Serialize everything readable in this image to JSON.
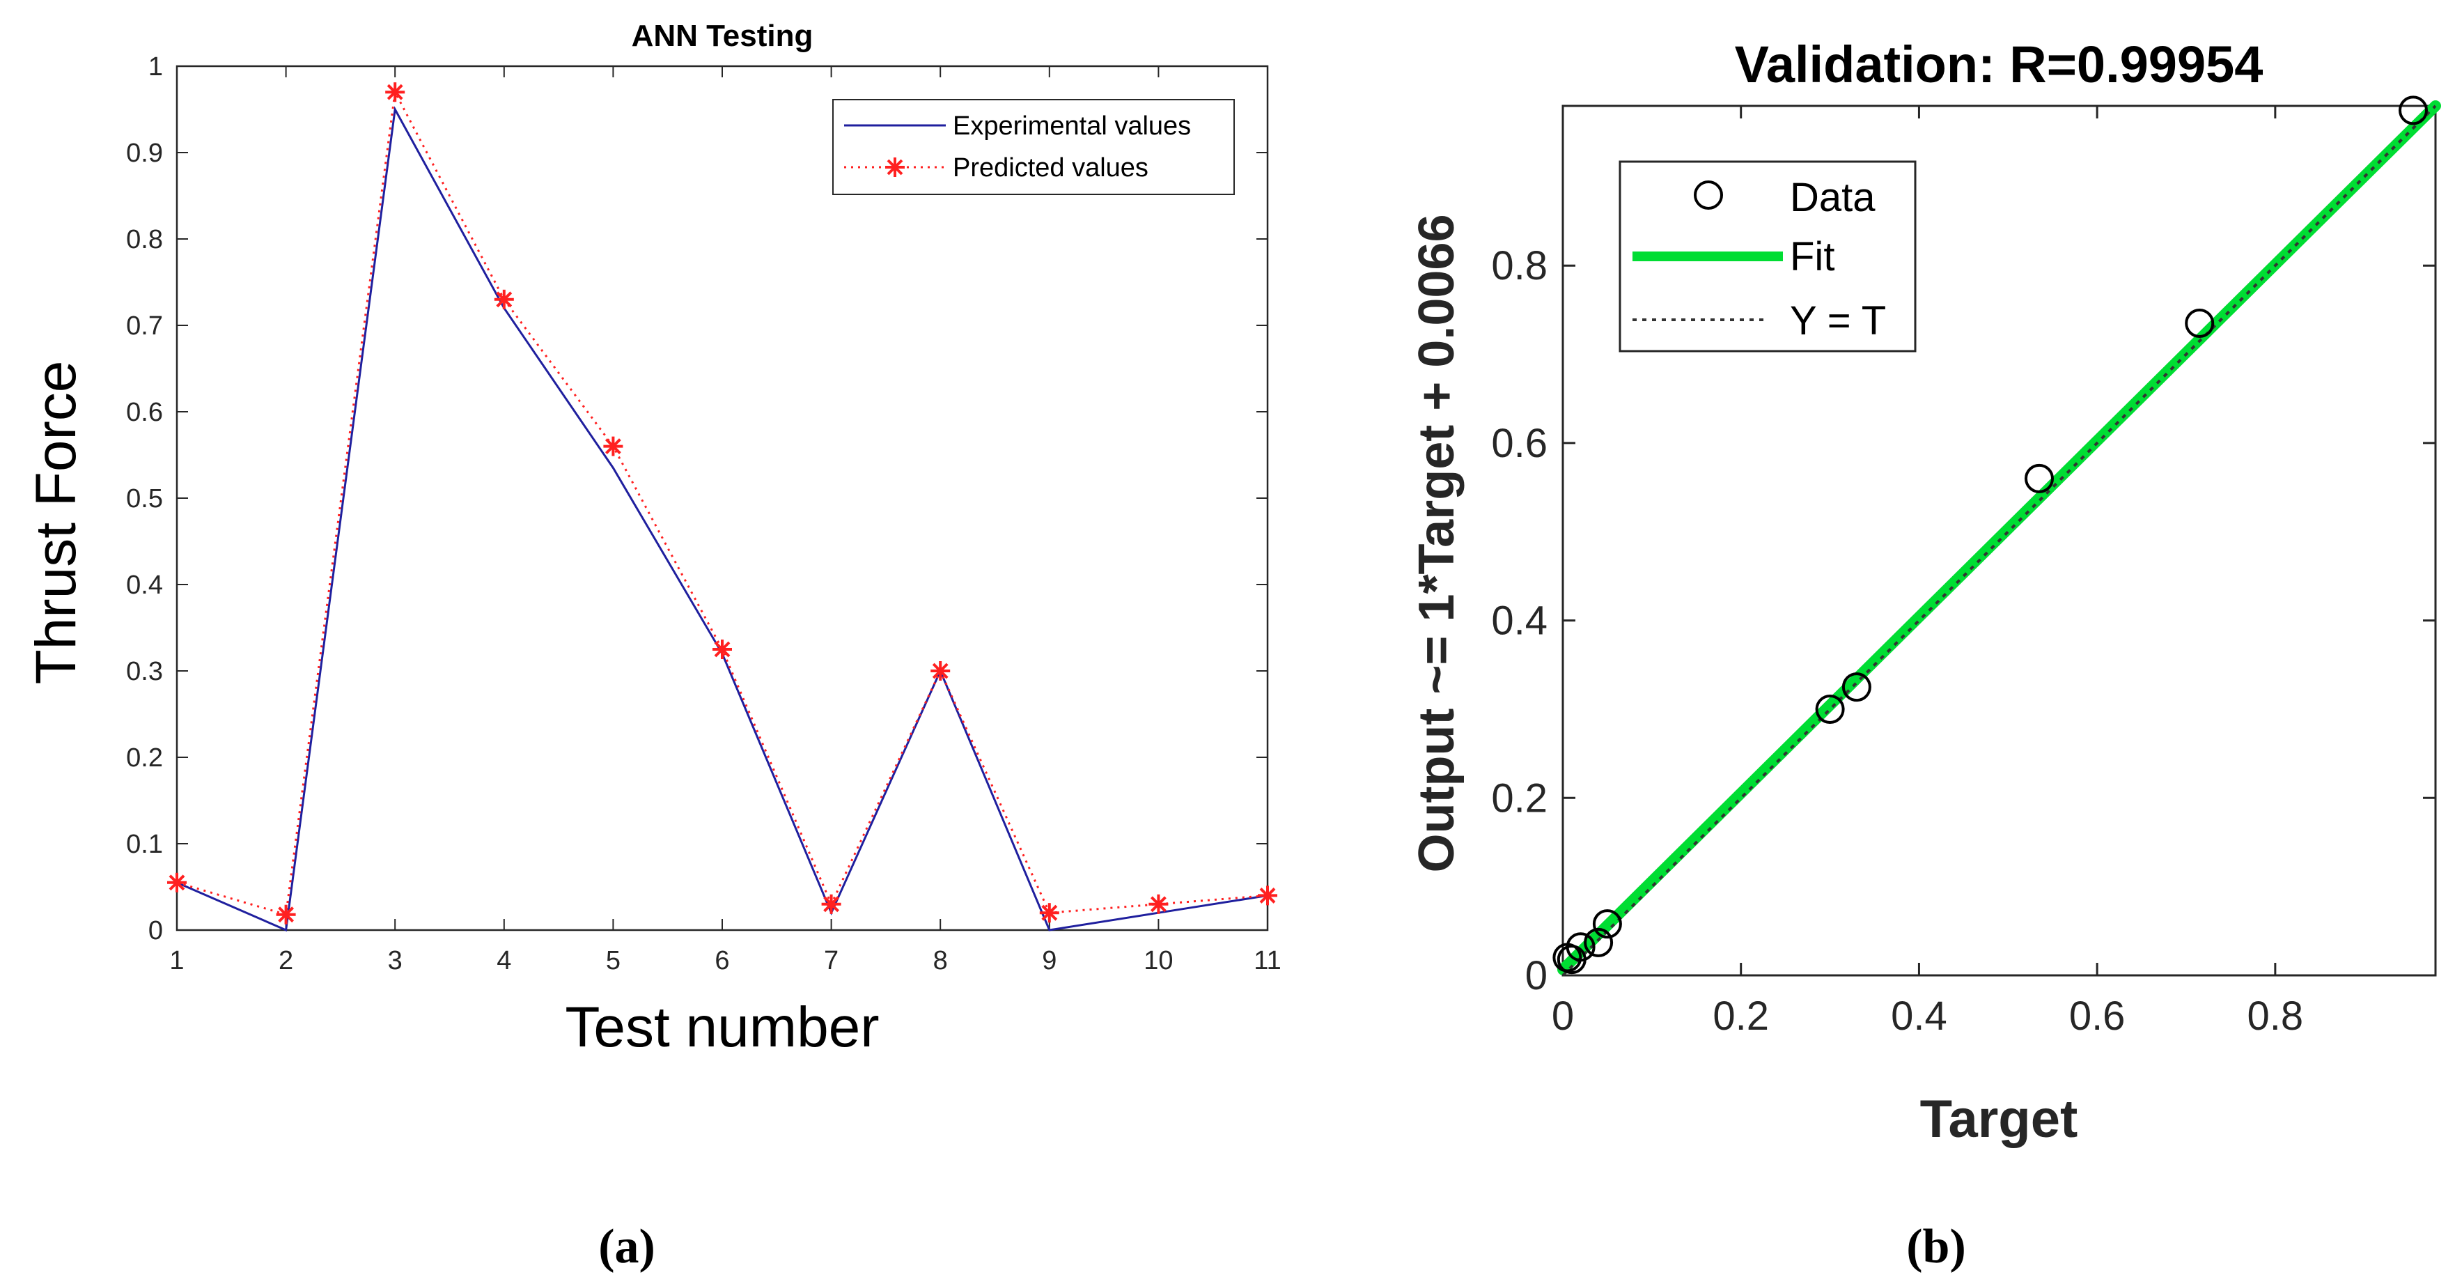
{
  "chart_data": [
    {
      "type": "line",
      "panel_label": "(a)",
      "title": "ANN Testing",
      "xlabel": "Test number",
      "ylabel": "Thrust Force",
      "xlim": [
        1,
        11
      ],
      "ylim": [
        0,
        1
      ],
      "xticks": [
        1,
        2,
        3,
        4,
        5,
        6,
        7,
        8,
        9,
        10,
        11
      ],
      "yticks": [
        0,
        0.1,
        0.2,
        0.3,
        0.4,
        0.5,
        0.6,
        0.7,
        0.8,
        0.9,
        1
      ],
      "ytick_labels": [
        "0",
        "0.1",
        "0.2",
        "0.3",
        "0.4",
        "0.5",
        "0.6",
        "0.7",
        "0.8",
        "0.9",
        "1"
      ],
      "grid": false,
      "legend_position": "top-right",
      "x": [
        1,
        2,
        3,
        4,
        5,
        6,
        7,
        8,
        9,
        10,
        11
      ],
      "series": [
        {
          "name": "Experimental values",
          "color": "#1f1f9e",
          "style": "solid",
          "values": [
            0.055,
            0.0,
            0.95,
            0.72,
            0.535,
            0.32,
            0.02,
            0.3,
            0.0,
            0.02,
            0.04
          ]
        },
        {
          "name": "Predicted values",
          "color": "#ff2020",
          "style": "dotted",
          "marker": "asterisk",
          "values": [
            0.055,
            0.018,
            0.97,
            0.73,
            0.56,
            0.325,
            0.03,
            0.3,
            0.02,
            0.03,
            0.04
          ]
        }
      ]
    },
    {
      "type": "scatter",
      "panel_label": "(b)",
      "title": "Validation: R=0.99954",
      "xlabel": "Target",
      "ylabel": "Output ~= 1*Target + 0.0066",
      "xlim": [
        0,
        0.98
      ],
      "ylim": [
        0,
        0.98
      ],
      "xticks": [
        0,
        0.2,
        0.4,
        0.6,
        0.8
      ],
      "yticks": [
        0,
        0.2,
        0.4,
        0.6,
        0.8
      ],
      "tick_labels": [
        "0",
        "0.2",
        "0.4",
        "0.6",
        "0.8"
      ],
      "grid": false,
      "legend_position": "top-left",
      "legend": [
        {
          "name": "Data",
          "color": "#000000"
        },
        {
          "name": "Fit",
          "color": "#00dd33"
        },
        {
          "name": "Y = T",
          "color": "#333333"
        }
      ],
      "points": {
        "x": [
          0.005,
          0.01,
          0.02,
          0.04,
          0.05,
          0.3,
          0.33,
          0.535,
          0.715,
          0.955
        ],
        "y": [
          0.02,
          0.018,
          0.032,
          0.037,
          0.058,
          0.3,
          0.325,
          0.56,
          0.735,
          0.975
        ]
      },
      "fit": {
        "slope": 1,
        "intercept": 0.0066
      }
    }
  ]
}
